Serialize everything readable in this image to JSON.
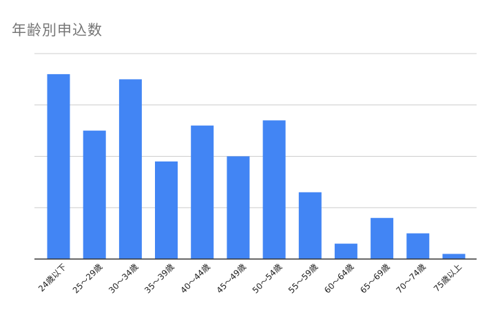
{
  "chart_data": {
    "type": "bar",
    "title": "年齢別申込数",
    "xlabel": "",
    "ylabel": "",
    "categories": [
      "24歳以下",
      "25〜29歳",
      "30〜34歳",
      "35〜39歳",
      "40〜44歳",
      "45〜49歳",
      "50〜54歳",
      "55〜59歳",
      "60〜64歳",
      "65〜69歳",
      "70〜74歳",
      "75歳以上"
    ],
    "values": [
      36,
      25,
      35,
      19,
      26,
      20,
      27,
      13,
      3,
      8,
      5,
      1
    ],
    "ylim": [
      0,
      40
    ],
    "gridlines": [
      10,
      20,
      30,
      40
    ],
    "grid": true,
    "y_tick_labels_shown": false,
    "legend": "none",
    "colors": {
      "bar": "#4285f4",
      "grid": "#cccccc",
      "axis": "#333333",
      "title": "#757575"
    }
  }
}
